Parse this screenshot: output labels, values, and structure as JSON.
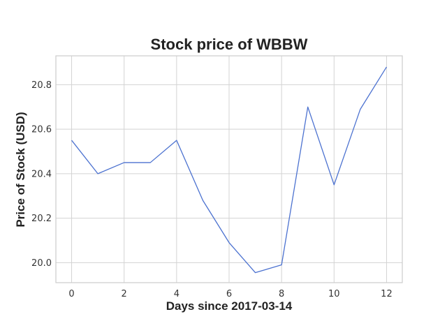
{
  "chart_data": {
    "type": "line",
    "title": "Stock price of WBBW",
    "xlabel": "Days since 2017-03-14",
    "ylabel": "Price of Stock (USD)",
    "xlim": [
      -0.6,
      12.6
    ],
    "ylim": [
      19.91,
      20.93
    ],
    "x_ticks": [
      0,
      2,
      4,
      6,
      8,
      10,
      12
    ],
    "x_tick_labels": [
      "0",
      "2",
      "4",
      "6",
      "8",
      "10",
      "12"
    ],
    "y_ticks": [
      20.0,
      20.2,
      20.4,
      20.6,
      20.8
    ],
    "y_tick_labels": [
      "20.0",
      "20.2",
      "20.4",
      "20.6",
      "20.8"
    ],
    "grid": true,
    "series": [
      {
        "color": "#4c72d0",
        "x": [
          0,
          1,
          2,
          3,
          4,
          5,
          6,
          7,
          8,
          9,
          10,
          11,
          12
        ],
        "values": [
          20.55,
          20.4,
          20.45,
          20.45,
          20.55,
          20.28,
          20.09,
          19.955,
          19.99,
          20.7,
          20.35,
          20.69,
          20.88
        ]
      }
    ]
  }
}
